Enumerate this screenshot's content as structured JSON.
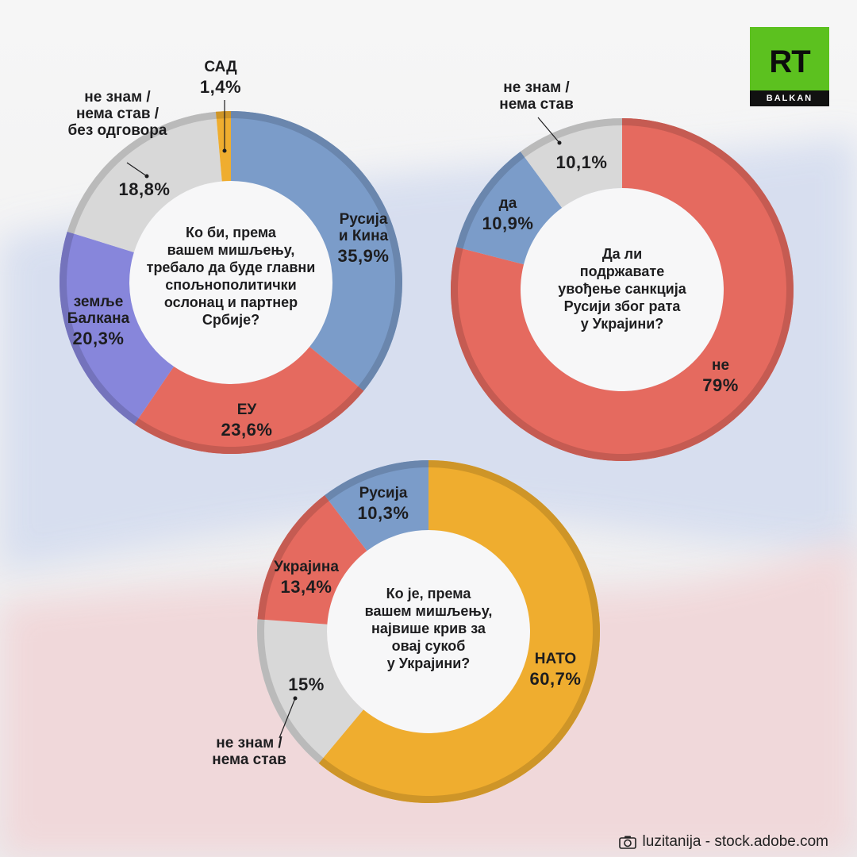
{
  "logo": {
    "mark": "RT",
    "sub": "BALKAN"
  },
  "credit": "luzitanija - stock.adobe.com",
  "colors": {
    "blue": "#7b9cc9",
    "red": "#e56a5f",
    "gray": "#d8d8d8",
    "orange": "#efad2f",
    "violet": "#8786db"
  },
  "chart_data": [
    {
      "type": "pie",
      "title": "Ко би, према вашем мишљењу, требало да буде главни спољнополитички ослонац и партнер Србије?",
      "title_lines": [
        "Ко би, према",
        "вашем мишљењу,",
        "требало да буде главни",
        "спољнополитички",
        "ослонац и партнер",
        "Србије?"
      ],
      "slices": [
        {
          "name_lines": [
            "Русија",
            "и Кина"
          ],
          "value": 35.9,
          "value_label": "35,9%",
          "color": "#7b9cc9"
        },
        {
          "name_lines": [
            "ЕУ"
          ],
          "value": 23.6,
          "value_label": "23,6%",
          "color": "#e56a5f"
        },
        {
          "name_lines": [
            "земље",
            "Балкана"
          ],
          "value": 20.3,
          "value_label": "20,3%",
          "color": "#8786db"
        },
        {
          "name_lines": [
            "не знам /",
            "нема став /",
            "без одговора"
          ],
          "value": 18.8,
          "value_label": "18,8%",
          "color": "#d8d8d8"
        },
        {
          "name_lines": [
            "САД"
          ],
          "value": 1.4,
          "value_label": "1,4%",
          "color": "#efad2f"
        }
      ]
    },
    {
      "type": "pie",
      "title": "Да ли подржавате увођење санкција Русији због рата у Украјини?",
      "title_lines": [
        "Да ли",
        "подржавате",
        "увођење санкција",
        "Русији због рата",
        "у Украјини?"
      ],
      "slices": [
        {
          "name_lines": [
            "не"
          ],
          "value": 79,
          "value_label": "79%",
          "color": "#e56a5f"
        },
        {
          "name_lines": [
            "да"
          ],
          "value": 10.9,
          "value_label": "10,9%",
          "color": "#7b9cc9"
        },
        {
          "name_lines": [
            "не знам /",
            "нема став"
          ],
          "value": 10.1,
          "value_label": "10,1%",
          "color": "#d8d8d8"
        }
      ]
    },
    {
      "type": "pie",
      "title": "Ко је, према вашем мишљењу, највише крив за овај сукоб у Украјини?",
      "title_lines": [
        "Ко је, према",
        "вашем мишљењу,",
        "највише крив за",
        "овај сукоб",
        "у Украјини?"
      ],
      "slices": [
        {
          "name_lines": [
            "НАТО"
          ],
          "value": 60.7,
          "value_label": "60,7%",
          "color": "#efad2f"
        },
        {
          "name_lines": [
            "не знам /",
            "нема став"
          ],
          "value": 15,
          "value_label": "15%",
          "color": "#d8d8d8"
        },
        {
          "name_lines": [
            "Украјина"
          ],
          "value": 13.4,
          "value_label": "13,4%",
          "color": "#e56a5f"
        },
        {
          "name_lines": [
            "Русија"
          ],
          "value": 10.3,
          "value_label": "10,3%",
          "color": "#7b9cc9"
        }
      ]
    }
  ]
}
